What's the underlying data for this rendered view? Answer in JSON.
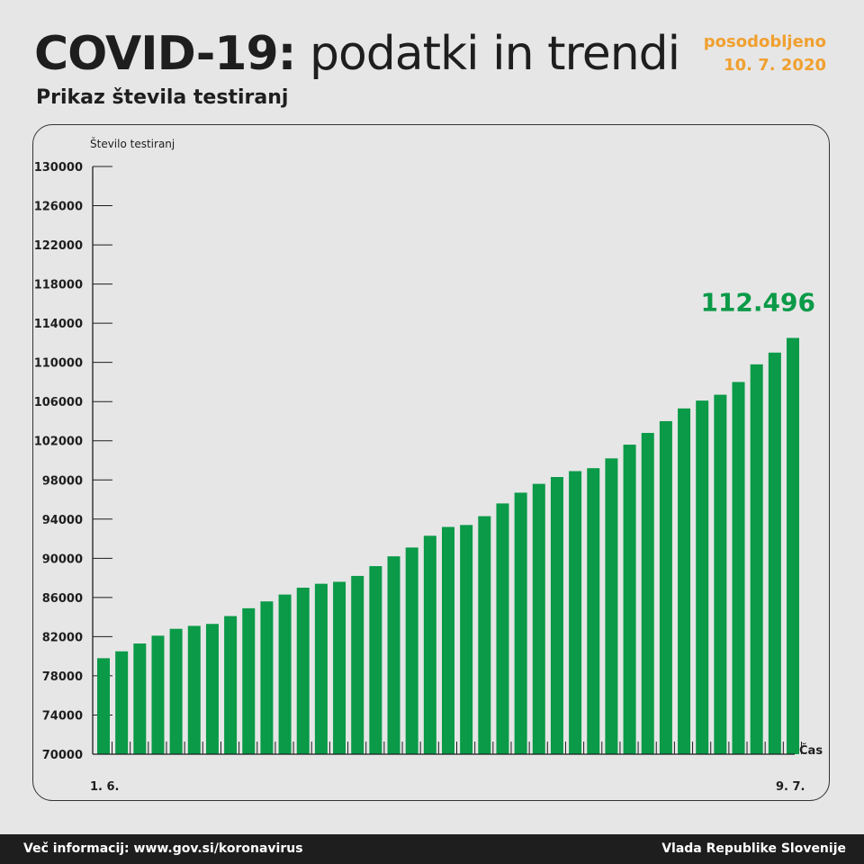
{
  "header": {
    "title_bold": "COVID-19:",
    "title_rest": " podatki in trendi",
    "subtitle": "Prikaz števila testiranj",
    "updated_label": "posodobljeno",
    "updated_date": "10. 7. 2020"
  },
  "footer": {
    "info": "Več informacij: www.gov.si/koronavirus",
    "org": "Vlada Republike Slovenije"
  },
  "colors": {
    "bar": "#0a9a48",
    "highlight": "#0a9a48",
    "updated": "#f0a030",
    "axis": "#1e1e1e"
  },
  "chart_data": {
    "type": "bar",
    "ylabel": "Število testiranj",
    "xlabel": "Čas",
    "ylim": [
      70000,
      130000
    ],
    "yticks": [
      "130000",
      "126000",
      "122000",
      "118000",
      "114000",
      "110000",
      "106000",
      "102000",
      "98000",
      "94000",
      "90000",
      "86000",
      "82000",
      "78000",
      "74000",
      "70000"
    ],
    "x_start_label": "1. 6.",
    "x_end_label": "9. 7.",
    "highlight_label": "112.496",
    "values": [
      79800,
      80500,
      81300,
      82100,
      82800,
      83100,
      83300,
      84100,
      84900,
      85600,
      86300,
      87000,
      87400,
      87600,
      88200,
      89200,
      90200,
      91100,
      92300,
      93200,
      93400,
      94300,
      95600,
      96700,
      97600,
      98300,
      98900,
      99200,
      100200,
      101600,
      102800,
      104000,
      105300,
      106100,
      106700,
      108000,
      109800,
      111000,
      112496
    ]
  }
}
